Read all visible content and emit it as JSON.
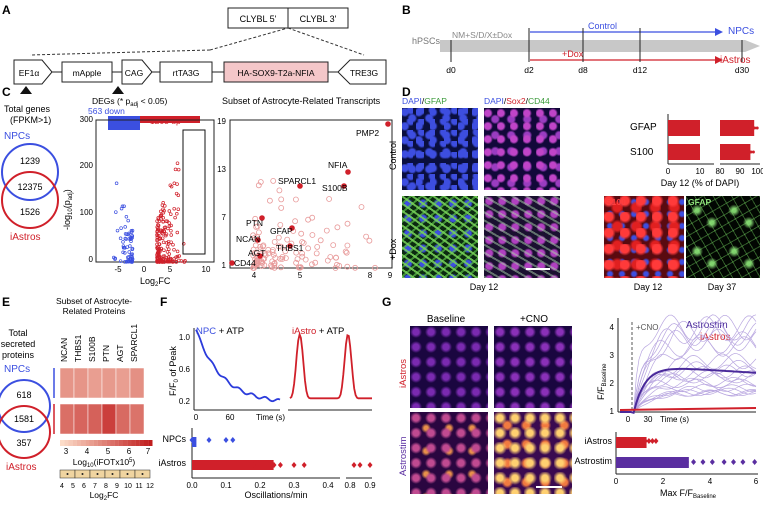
{
  "panels": {
    "A": "A",
    "B": "B",
    "C": "C",
    "D": "D",
    "E": "E",
    "F": "F",
    "G": "G"
  },
  "panel_a": {
    "clybl_5": "CLYBL 5'",
    "clybl_3": "CLYBL 3'",
    "elements": [
      "EF1α",
      "mApple",
      "CAG",
      "rtTA3G",
      "HA-SOX9-T2a-NFIA",
      "TRE3G"
    ]
  },
  "panel_b": {
    "hpsc": "hPSCs",
    "media": "NM+S/D/X±Dox",
    "control": "Control",
    "dox": "+Dox",
    "npcs": "NPCs",
    "iastros": "iAstros",
    "days": [
      "d0",
      "d2",
      "d8",
      "d12",
      "d30"
    ],
    "colors": {
      "control": "#3b4fe0",
      "dox": "#d0202a"
    }
  },
  "panel_c": {
    "total_genes": "Total genes",
    "fpkm": "(FPKM>1)",
    "npcs": "NPCs",
    "iastros": "iAstros",
    "venn": [
      "1239",
      "12375",
      "1526"
    ],
    "degs_title": "DEGs (* p",
    "degs_sub": "adj",
    "degs_tail": " < 0.05)",
    "down": "563 down",
    "up": "1203 up",
    "volcano_ylabel": "-log",
    "volcano_ylabel_sub": "10",
    "volcano_ylabel_tail": "(p",
    "volcano_ylabel_sub2": "adj",
    "volcano_xlabel": "Log",
    "volcano_xlabel_sub": "2",
    "volcano_xlabel_tail": "FC",
    "volcano_xticks": [
      "-5",
      "0",
      "5",
      "10"
    ],
    "volcano_yticks": [
      "0",
      "100",
      "200",
      "300"
    ],
    "subset_title": "Subset of Astrocyte-Related Transcripts",
    "subset_xticks": [
      "4",
      "5",
      "8",
      "9"
    ],
    "subset_yticks": [
      "1",
      "7",
      "13",
      "19"
    ],
    "genes": [
      "PMP2",
      "NFIA",
      "SPARCL1",
      "S100B",
      "PTN",
      "GFAP",
      "NCAN",
      "THBS1",
      "AGT",
      "CD44"
    ]
  },
  "panel_d": {
    "label_dapi_gfap": [
      "DAPI",
      "/",
      "GFAP"
    ],
    "label_dapi_sox2_cd44": [
      "DAPI",
      "/",
      "Sox2",
      "/",
      "CD44"
    ],
    "control": "Control",
    "dox": "+Dox",
    "day12": "Day 12",
    "day12b": "Day 12",
    "day37": "Day 37",
    "s100_tag": "S100",
    "gfap_tag": "GFAP",
    "xlabel": "Day 12 (% of DAPI)",
    "xticks": [
      "0",
      "10",
      "80",
      "90",
      "100"
    ]
  },
  "panel_e": {
    "total": "Total",
    "secreted": "secreted",
    "proteins": "proteins",
    "subset_title_1": "Subset of Astrocyte-",
    "subset_title_2": "Related Proteins",
    "columns": [
      "NCAN",
      "THBS1",
      "S100B",
      "PTN",
      "AGT",
      "SPARCL1"
    ],
    "npcs": "NPCs",
    "iastros": "iAstros",
    "venn": [
      "618",
      "1581",
      "357"
    ],
    "ibaq_ticks": [
      "3",
      "4",
      "5",
      "6",
      "7"
    ],
    "ibaq_label": "Log",
    "ibaq_sub": "10",
    "ibaq_tail": "(iFOTx10",
    "ibaq_sup": "5",
    "fc_ticks": [
      "4",
      "5",
      "6",
      "7",
      "8",
      "9",
      "10",
      "11",
      "12"
    ],
    "fc_label": "Log",
    "fc_sub": "2",
    "fc_tail": "FC"
  },
  "panel_f": {
    "npc_atp": "NPC",
    "iastro_atp": "iAstro",
    "atp": " + ATP",
    "ylabel": "F/F",
    "ylabel_sub": "0",
    "ylabel_tail": " of Peak",
    "yticks": [
      "0.2",
      "0.6",
      "1.0"
    ],
    "xticks": [
      "0",
      "60"
    ],
    "time": "Time (s)",
    "npcs": "NPCs",
    "iastros": "iAstros",
    "osc_label": "Oscillations/min",
    "osc_ticks": [
      "0.0",
      "0.1",
      "0.2",
      "0.3",
      "0.4",
      "0.8",
      "0.9"
    ]
  },
  "panel_g": {
    "baseline": "Baseline",
    "cno": "+CNO",
    "iastros": "iAstros",
    "astrostim": "Astrostim",
    "plot_cno": "+CNO",
    "legend_astrostim": "Astrostim",
    "legend_iastros": "iAstros",
    "ylabel": "F/F",
    "ylabel_sub": "Baseline",
    "yticks": [
      "1",
      "2",
      "3",
      "4"
    ],
    "xticks": [
      "0",
      "30"
    ],
    "time": "Time (s)",
    "bar_labels": [
      "iAstros",
      "Astrostim"
    ],
    "xlabel": "Max F/F",
    "xlabel_sub": "Baseline",
    "bar_ticks": [
      "0",
      "2",
      "4",
      "6"
    ]
  },
  "chart_data": [
    {
      "type": "bar",
      "categories": [
        "GFAP",
        "S100"
      ],
      "values": [
        98,
        96
      ],
      "xlabel": "Day 12 (% of DAPI)",
      "xlim": [
        0,
        100
      ]
    },
    {
      "type": "heatmap",
      "columns": [
        "NCAN",
        "THBS1",
        "S100B",
        "PTN",
        "AGT",
        "SPARCL1"
      ],
      "rows": [
        "NPCs",
        "iAstros"
      ],
      "values_log10_ifot": [
        [
          4.5,
          4.5,
          4.3,
          4.4,
          4.3,
          4.6
        ],
        [
          5.3,
          5.5,
          5.6,
          6.3,
          5.4,
          5.2
        ]
      ],
      "log2fc": [
        5,
        6,
        8,
        9,
        7,
        6
      ],
      "colorbar_ticks": [
        3,
        4,
        5,
        6,
        7
      ]
    },
    {
      "type": "bar",
      "categories": [
        "NPCs",
        "iAstros"
      ],
      "values": [
        0.01,
        0.24
      ],
      "xlabel": "Oscillations/min",
      "xlim": [
        0,
        0.9
      ]
    },
    {
      "type": "bar",
      "categories": [
        "iAstros",
        "Astrostim"
      ],
      "values": [
        1.3,
        3.1
      ],
      "xlabel": "Max F/F Baseline",
      "xlim": [
        0,
        6
      ]
    }
  ]
}
